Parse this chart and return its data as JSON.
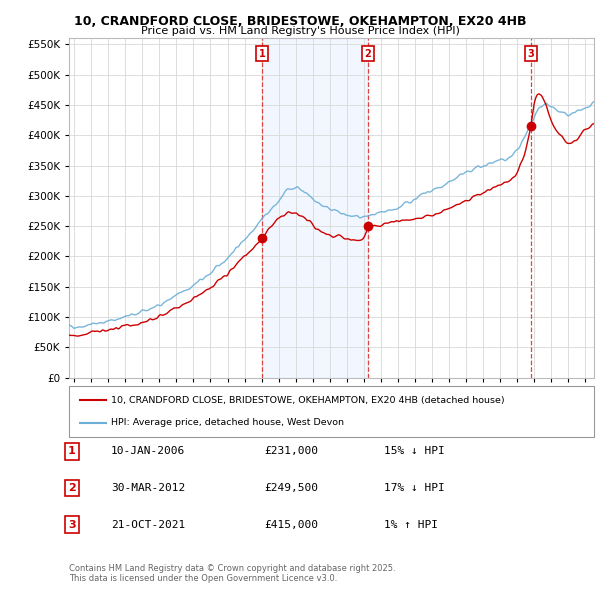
{
  "title": "10, CRANDFORD CLOSE, BRIDESTOWE, OKEHAMPTON, EX20 4HB",
  "subtitle": "Price paid vs. HM Land Registry's House Price Index (HPI)",
  "legend_label_red": "10, CRANDFORD CLOSE, BRIDESTOWE, OKEHAMPTON, EX20 4HB (detached house)",
  "legend_label_blue": "HPI: Average price, detached house, West Devon",
  "transactions": [
    {
      "num": 1,
      "date": "10-JAN-2006",
      "price": 231000,
      "pct": "15%",
      "dir": "↓"
    },
    {
      "num": 2,
      "date": "30-MAR-2012",
      "price": 249500,
      "pct": "17%",
      "dir": "↓"
    },
    {
      "num": 3,
      "date": "21-OCT-2021",
      "price": 415000,
      "pct": "1%",
      "dir": "↑"
    }
  ],
  "transaction_dates_decimal": [
    2006.03,
    2012.24,
    2021.8
  ],
  "ylim": [
    0,
    560000
  ],
  "yticks": [
    0,
    50000,
    100000,
    150000,
    200000,
    250000,
    300000,
    350000,
    400000,
    450000,
    500000,
    550000
  ],
  "xlim_start": 1994.7,
  "xlim_end": 2025.5,
  "background_color": "#ffffff",
  "plot_bg_color": "#ffffff",
  "grid_color": "#d8d8d8",
  "red_color": "#cc0000",
  "blue_color": "#6baed6",
  "blue_fill_color": "#ddeeff",
  "vline_color": "#dd4444",
  "footer": "Contains HM Land Registry data © Crown copyright and database right 2025.\nThis data is licensed under the Open Government Licence v3.0."
}
